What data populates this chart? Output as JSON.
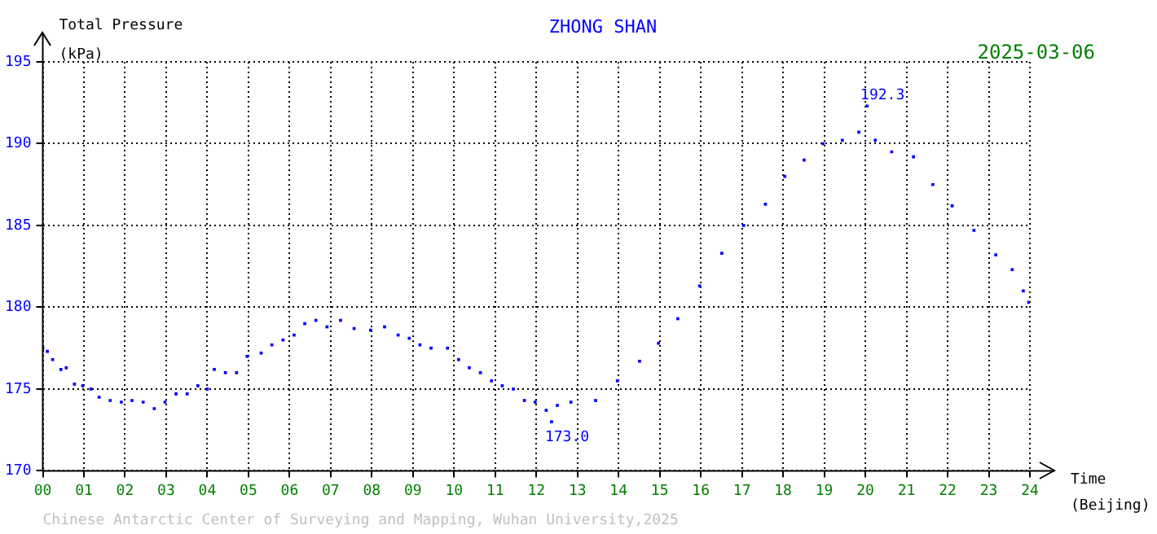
{
  "chart_data": {
    "type": "scatter",
    "title": "ZHONG SHAN",
    "subtitle": "2025-03-06",
    "ylabel": "Total Pressure (kPa)",
    "xlabel": "Time (Beijing)",
    "annotations": [
      {
        "text": "192.3",
        "x": 20.04,
        "y": 192.3
      },
      {
        "text": "173.0",
        "x": 12.37,
        "y": 173.0
      },
      "Chinese Antarctic Center of Surveying and Mapping, Wuhan University,2025"
    ],
    "x": [
      0,
      0.11,
      0.24,
      0.44,
      0.57,
      0.77,
      0.97,
      1.17,
      1.37,
      1.64,
      1.91,
      2.17,
      2.44,
      2.71,
      2.97,
      3.24,
      3.51,
      3.77,
      4.0,
      4.17,
      4.44,
      4.71,
      4.97,
      5.31,
      5.57,
      5.84,
      6.11,
      6.37,
      6.64,
      6.91,
      7.24,
      7.57,
      7.97,
      8.31,
      8.64,
      8.91,
      9.17,
      9.44,
      9.84,
      10.11,
      10.37,
      10.64,
      10.91,
      11.17,
      11.44,
      11.71,
      11.97,
      12.24,
      12.37,
      12.51,
      12.84,
      13.44,
      13.97,
      14.51,
      14.97,
      15.44,
      15.97,
      16.51,
      17.04,
      17.57,
      18.04,
      18.51,
      18.97,
      19.44,
      19.84,
      20.04,
      20.24,
      20.64,
      21.17,
      21.64,
      22.11,
      22.64,
      23.17,
      23.57,
      23.84,
      23.97
    ],
    "series": [
      {
        "color": "#0000ff",
        "values": [
          177.5,
          177.3,
          176.8,
          176.2,
          176.3,
          175.3,
          175.2,
          175.0,
          174.5,
          174.3,
          174.2,
          174.3,
          174.2,
          173.8,
          174.2,
          174.7,
          174.7,
          175.2,
          175.0,
          176.2,
          176.0,
          176.0,
          177.0,
          177.2,
          177.7,
          178.0,
          178.3,
          179.0,
          179.2,
          178.8,
          179.2,
          178.7,
          178.6,
          178.8,
          178.3,
          178.1,
          177.7,
          177.5,
          177.5,
          176.8,
          176.3,
          176.0,
          175.5,
          175.2,
          175.0,
          174.3,
          174.2,
          173.7,
          173.0,
          174.0,
          174.2,
          174.3,
          175.5,
          176.7,
          177.8,
          179.3,
          181.3,
          183.3,
          185.0,
          186.3,
          188.0,
          189.0,
          190.0,
          190.2,
          190.7,
          192.3,
          190.2,
          189.5,
          189.2,
          187.5,
          186.2,
          184.7,
          183.2,
          182.3,
          181.0,
          180.3
        ]
      }
    ],
    "xlim": [
      0,
      24
    ],
    "xticks": [
      {
        "value": 0,
        "label": "00"
      },
      {
        "value": 1,
        "label": "01"
      },
      {
        "value": 2,
        "label": "02"
      },
      {
        "value": 3,
        "label": "03"
      },
      {
        "value": 4,
        "label": "04"
      },
      {
        "value": 5,
        "label": "05"
      },
      {
        "value": 6,
        "label": "06"
      },
      {
        "value": 7,
        "label": "07"
      },
      {
        "value": 8,
        "label": "08"
      },
      {
        "value": 9,
        "label": "09"
      },
      10,
      11,
      12,
      13,
      14,
      15,
      16,
      17,
      18,
      19,
      20,
      21,
      22,
      23,
      24
    ],
    "ylim": [
      170,
      195
    ],
    "yticks": [
      170,
      175,
      180,
      185,
      190,
      195
    ],
    "grid": true,
    "marker": "square",
    "legend": false
  }
}
